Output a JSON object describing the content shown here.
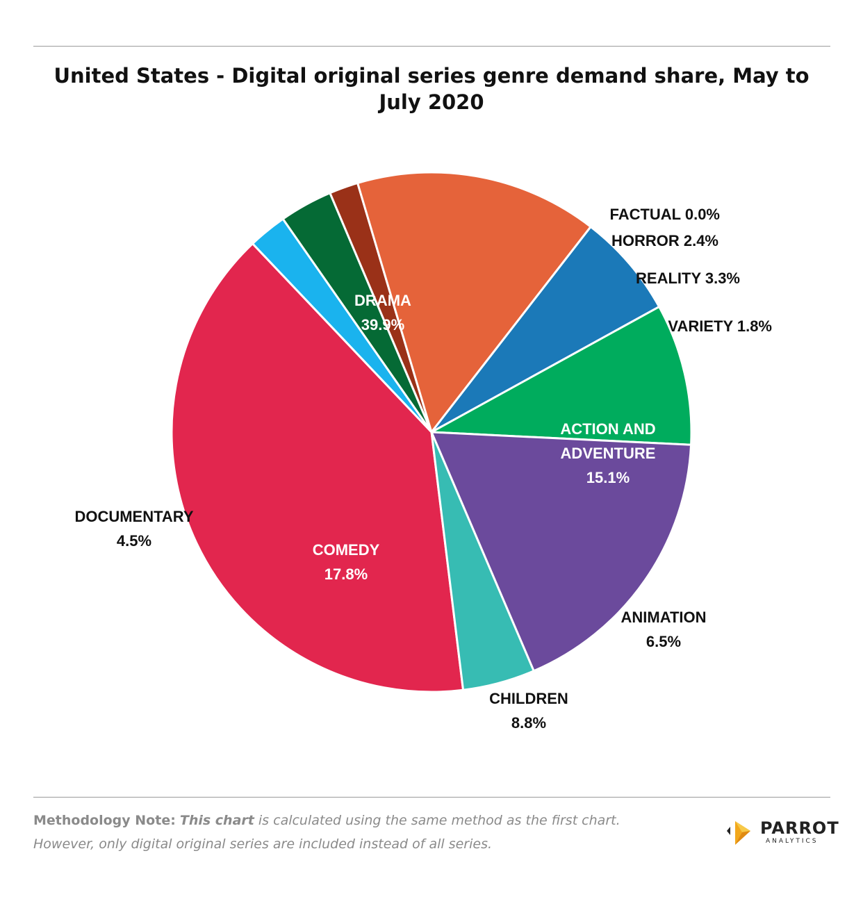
{
  "title": "United States - Digital original series genre demand share, May to July 2020",
  "chart_data": {
    "type": "pie",
    "title": "United States - Digital original series genre demand share, May to July 2020",
    "unit": "%",
    "slices": [
      {
        "label": "DRAMA",
        "value": 39.9,
        "value_text": "39.9%",
        "color": "#e2264e",
        "label_color": "#ffffff"
      },
      {
        "label": "FACTUAL",
        "value": 0.0,
        "value_text": "0.0%",
        "color": "#cccccc",
        "label_color": "#111111"
      },
      {
        "label": "HORROR",
        "value": 2.4,
        "value_text": "2.4%",
        "color": "#1ab3ee",
        "label_color": "#111111"
      },
      {
        "label": "REALITY",
        "value": 3.3,
        "value_text": "3.3%",
        "color": "#056a35",
        "label_color": "#111111"
      },
      {
        "label": "VARIETY",
        "value": 1.8,
        "value_text": "1.8%",
        "color": "#9a3118",
        "label_color": "#111111"
      },
      {
        "label": "ACTION AND ADVENTURE",
        "label_lines": [
          "ACTION AND",
          "ADVENTURE"
        ],
        "value": 15.1,
        "value_text": "15.1%",
        "color": "#e5633a",
        "label_color": "#ffffff"
      },
      {
        "label": "ANIMATION",
        "value": 6.5,
        "value_text": "6.5%",
        "color": "#1b79b8",
        "label_color": "#111111"
      },
      {
        "label": "CHILDREN",
        "value": 8.8,
        "value_text": "8.8%",
        "color": "#00ac5d",
        "label_color": "#111111"
      },
      {
        "label": "COMEDY",
        "value": 17.8,
        "value_text": "17.8%",
        "color": "#6b4a9c",
        "label_color": "#ffffff"
      },
      {
        "label": "DOCUMENTARY",
        "value": 4.5,
        "value_text": "4.5%",
        "color": "#37bcb3",
        "label_color": "#111111"
      }
    ]
  },
  "footer": {
    "note_lead": "Methodology Note:",
    "note_emph": "This chart",
    "note_rest": " is calculated using the same method as the first chart.",
    "note_line2": "However, only digital original series are included instead of all series.",
    "logo_brand": "PARROT",
    "logo_sub": "ANALYTICS"
  }
}
